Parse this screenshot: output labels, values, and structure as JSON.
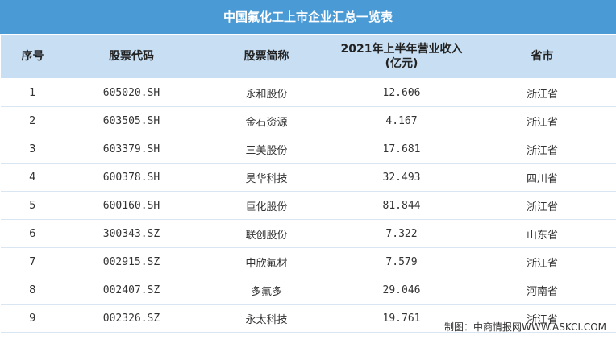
{
  "header": {
    "title": "中国氟化工上市企业汇总一览表"
  },
  "table": {
    "columns": [
      "序号",
      "股票代码",
      "股票简称",
      "2021年上半年营业收入\n(亿元)",
      "省市"
    ],
    "rows": [
      [
        "1",
        "605020.SH",
        "永和股份",
        "12.606",
        "浙江省"
      ],
      [
        "2",
        "603505.SH",
        "金石资源",
        "4.167",
        "浙江省"
      ],
      [
        "3",
        "603379.SH",
        "三美股份",
        "17.681",
        "浙江省"
      ],
      [
        "4",
        "600378.SH",
        "昊华科技",
        "32.493",
        "四川省"
      ],
      [
        "5",
        "600160.SH",
        "巨化股份",
        "81.844",
        "浙江省"
      ],
      [
        "6",
        "300343.SZ",
        "联创股份",
        "7.322",
        "山东省"
      ],
      [
        "7",
        "002915.SZ",
        "中欣氟材",
        "7.579",
        "浙江省"
      ],
      [
        "8",
        "002407.SZ",
        "多氟多",
        "29.046",
        "河南省"
      ],
      [
        "9",
        "002326.SZ",
        "永太科技",
        "19.761",
        "浙江省"
      ]
    ]
  },
  "footer": {
    "source": "制图：中商情报网WWW.ASKCI.COM"
  }
}
